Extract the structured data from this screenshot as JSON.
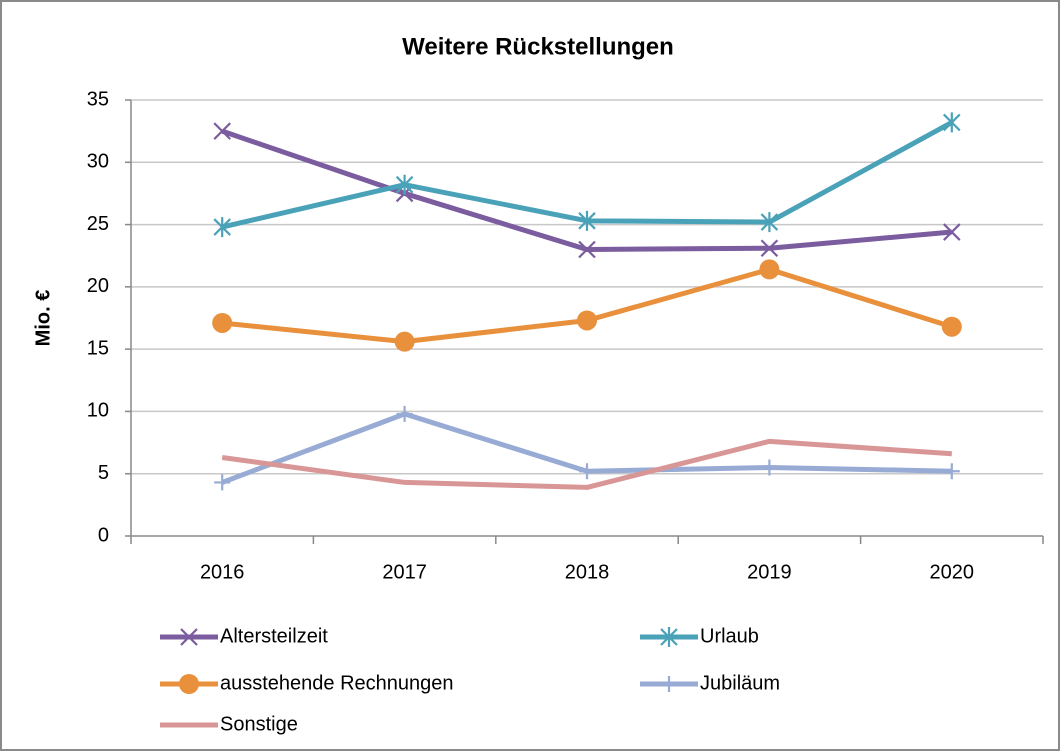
{
  "chart_data": {
    "type": "line",
    "title": "Weitere Rückstellungen",
    "y_label": "Mio. €",
    "categories": [
      "2016",
      "2017",
      "2018",
      "2019",
      "2020"
    ],
    "series": [
      {
        "name": "Altersteilzeit",
        "color": "#7b5c9f",
        "marker": "x",
        "values": [
          32.5,
          27.5,
          23.0,
          23.1,
          24.4
        ]
      },
      {
        "name": "Urlaub",
        "color": "#4aa2b8",
        "marker": "asterisk",
        "values": [
          24.8,
          28.2,
          25.3,
          25.2,
          33.2
        ]
      },
      {
        "name": "ausstehende Rechnungen",
        "color": "#e8903c",
        "marker": "circle",
        "values": [
          17.1,
          15.6,
          17.3,
          21.4,
          16.8
        ]
      },
      {
        "name": "Jubiläum",
        "color": "#97abd4",
        "marker": "plus",
        "values": [
          4.3,
          9.8,
          5.2,
          5.5,
          5.2
        ]
      },
      {
        "name": "Sonstige",
        "color": "#d99696",
        "marker": "none",
        "values": [
          6.3,
          4.3,
          3.9,
          7.6,
          6.6
        ]
      }
    ],
    "ylim": [
      0,
      35
    ],
    "yticks": [
      0,
      5,
      10,
      15,
      20,
      25,
      30,
      35
    ],
    "grid": true
  }
}
